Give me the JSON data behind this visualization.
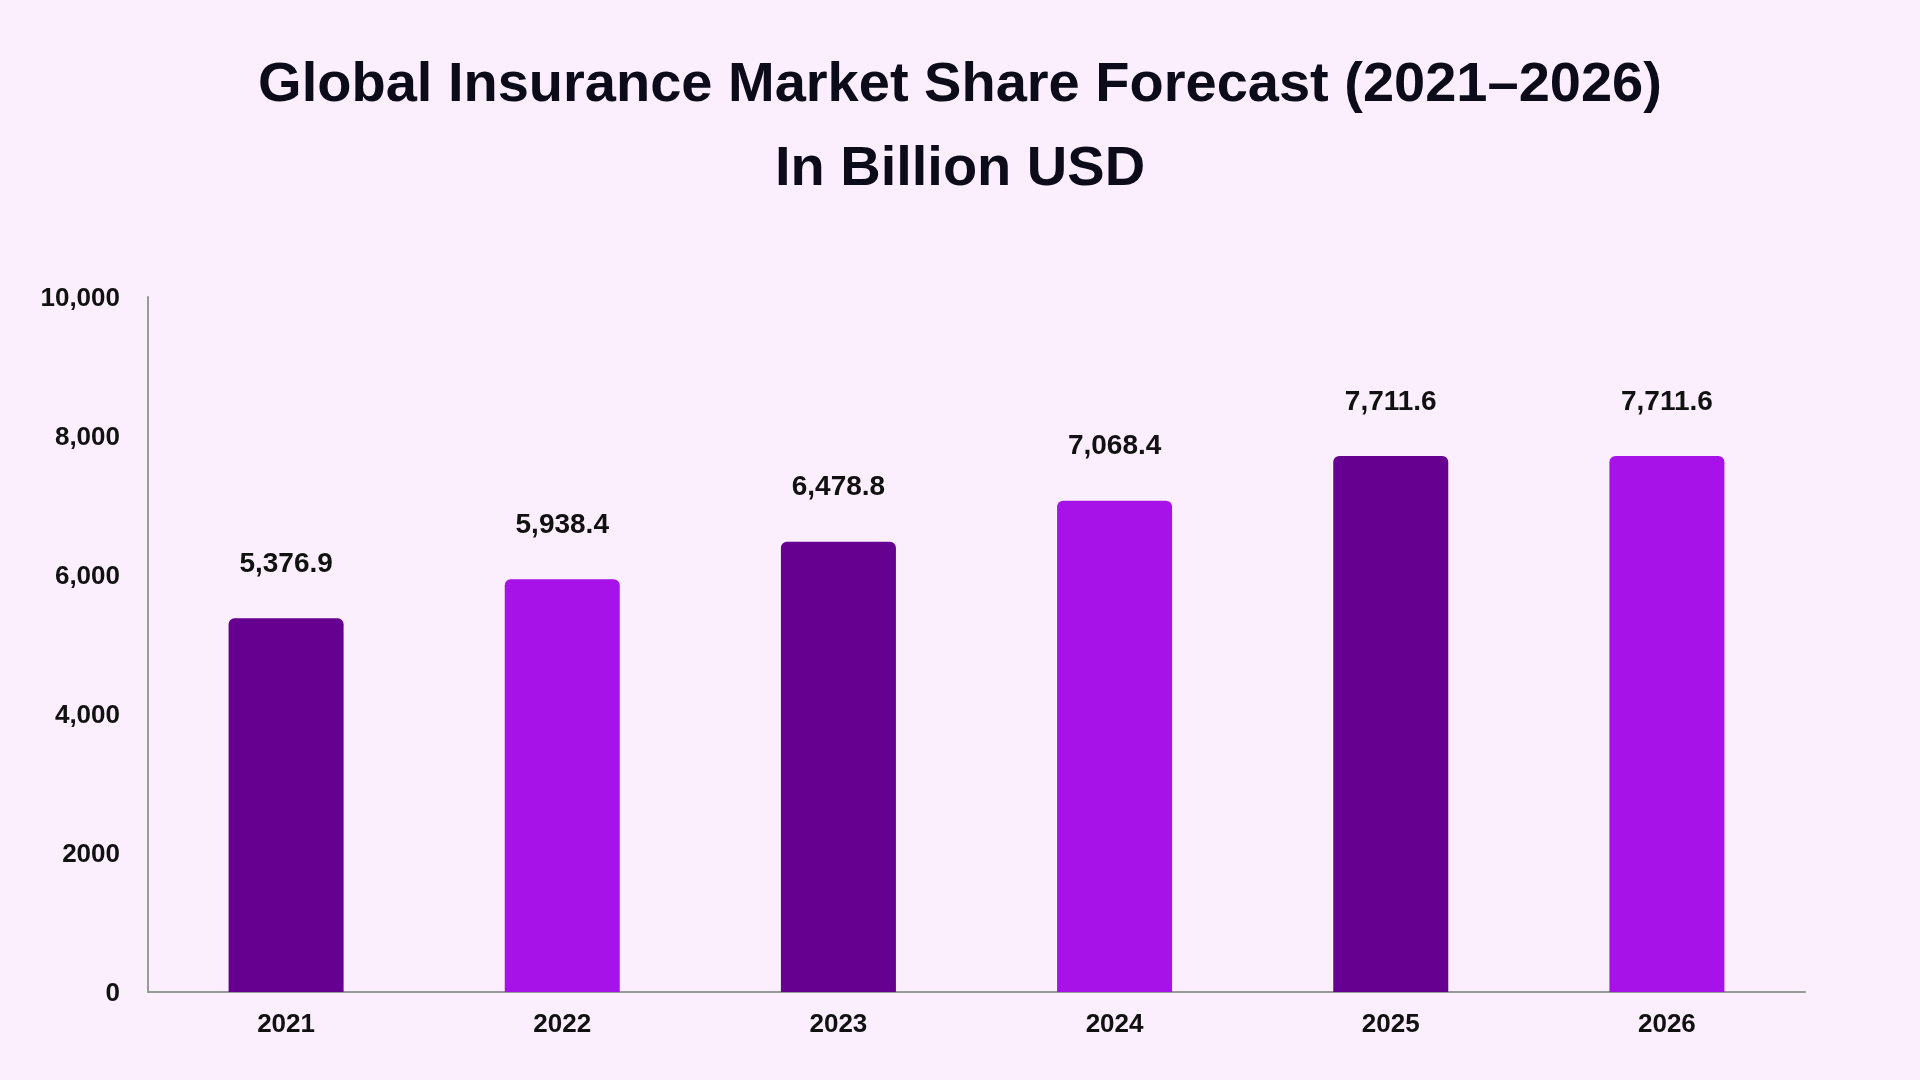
{
  "chart_data": {
    "type": "bar",
    "title": "Global Insurance Market Share Forecast (2021–2026)",
    "subtitle": "In Billion USD",
    "categories": [
      "2021",
      "2022",
      "2023",
      "2024",
      "2025",
      "2026"
    ],
    "values": [
      5376.9,
      5938.4,
      6478.8,
      7068.4,
      7711.6,
      7711.6
    ],
    "colors": [
      "#660091",
      "#a712e8",
      "#660091",
      "#a712e8",
      "#660091",
      "#a712e8"
    ],
    "value_labels": [
      "5,376.9",
      "5,938.4",
      "6,478.8",
      "7,068.4",
      "7,711.6",
      "7,711.6"
    ],
    "ylim": [
      0,
      10000
    ],
    "yticks": [
      0,
      2000,
      {
        "value": 4000,
        "label": "4,000"
      },
      {
        "value": 6000,
        "label": "6,000"
      },
      {
        "value": 8000,
        "label": "8,000"
      },
      {
        "value": 10000,
        "label": "10,000"
      }
    ],
    "grid": false
  }
}
